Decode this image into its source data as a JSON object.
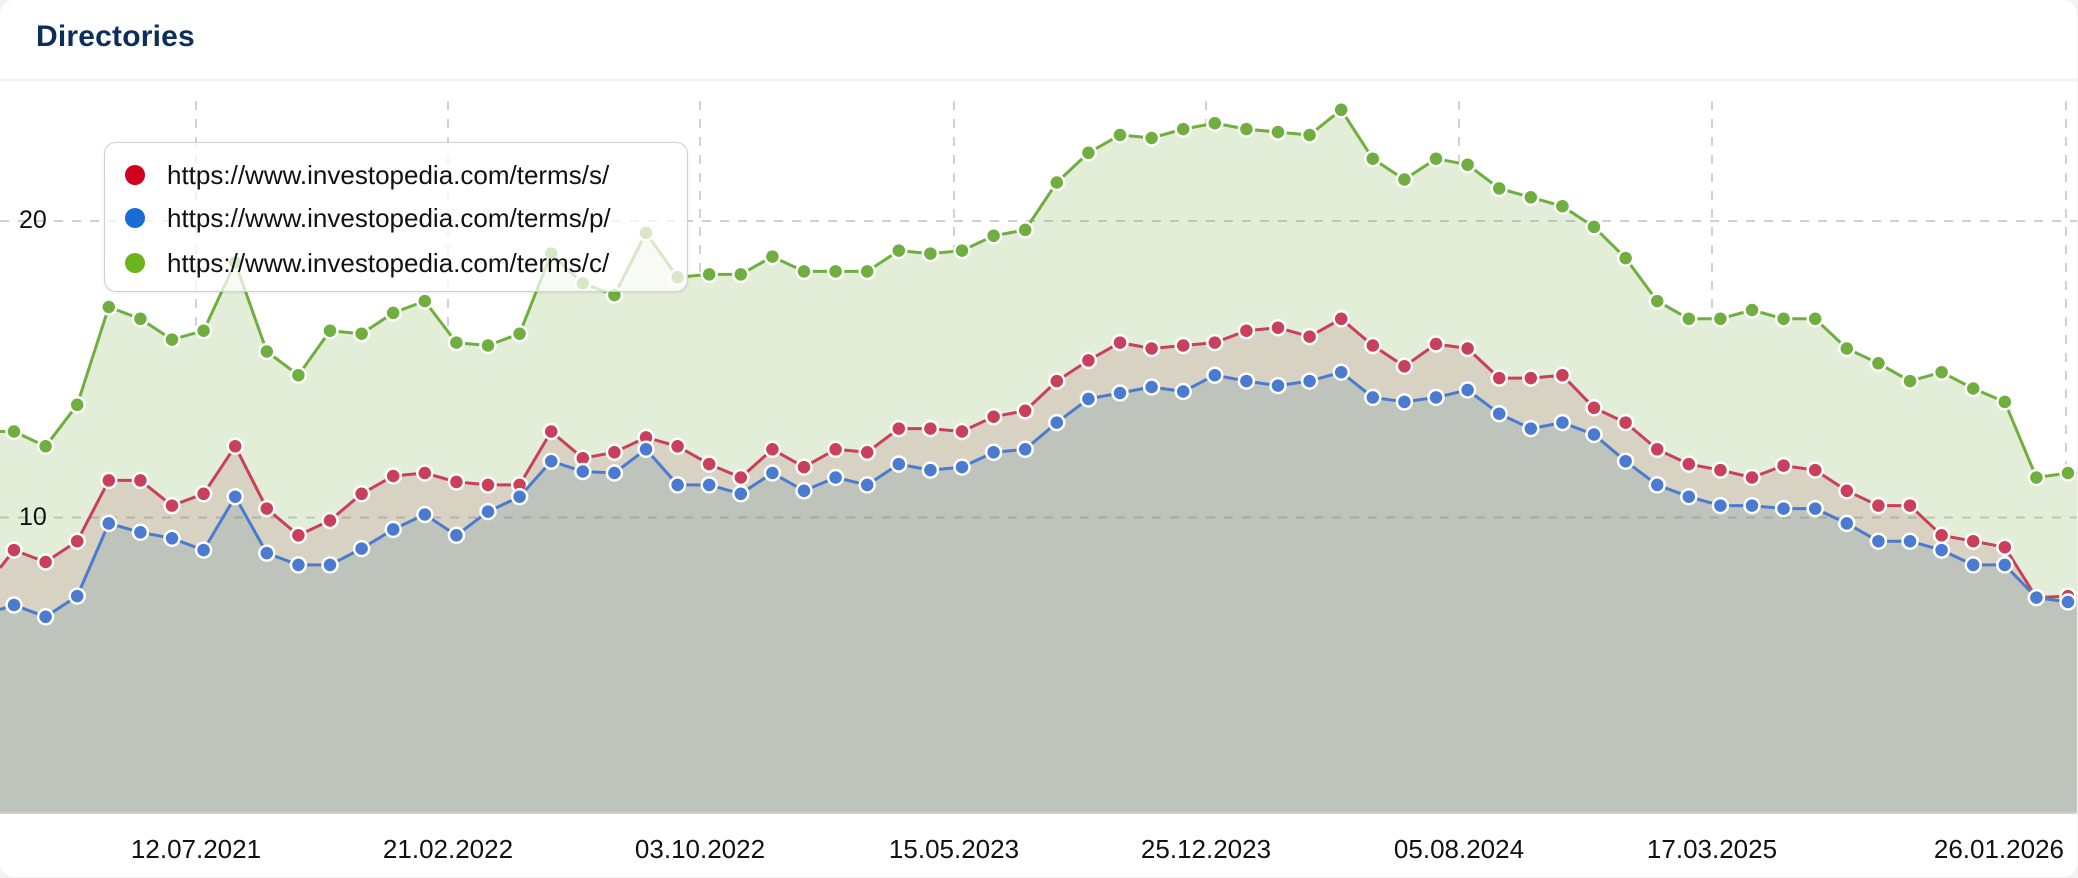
{
  "card": {
    "title": "Directories"
  },
  "legend": {
    "items": [
      {
        "label": "https://www.investopedia.com/terms/s/",
        "color": "#d0021b",
        "series": "s"
      },
      {
        "label": "https://www.investopedia.com/terms/p/",
        "color": "#1a6bd6",
        "series": "p"
      },
      {
        "label": "https://www.investopedia.com/terms/c/",
        "color": "#6db31a",
        "series": "c"
      }
    ]
  },
  "axes": {
    "y_ticks": [
      {
        "value": 10,
        "label": "10"
      },
      {
        "value": 20,
        "label": "20"
      }
    ],
    "x_ticks": [
      {
        "label": "12.07.2021"
      },
      {
        "label": "21.02.2022"
      },
      {
        "label": "03.10.2022"
      },
      {
        "label": "15.05.2023"
      },
      {
        "label": "25.12.2023"
      },
      {
        "label": "05.08.2024"
      },
      {
        "label": "17.03.2025"
      },
      {
        "label": "26.01.2026"
      }
    ]
  },
  "colors": {
    "c_line": "#6fae3f",
    "c_fill": "#e3eed9",
    "s_line": "#c9405a",
    "s_fill": "#d8d2c2",
    "p_line": "#4a7bd0",
    "p_fill": "#bec3bb",
    "grid": "#d2d2d2"
  },
  "chart_data": {
    "type": "area",
    "title": "Directories",
    "xlabel": "",
    "ylabel": "",
    "ylim": [
      0,
      25
    ],
    "grid": true,
    "legend_position": "top-left (overlay)",
    "x_tick_labels": [
      "12.07.2021",
      "21.02.2022",
      "03.10.2022",
      "15.05.2023",
      "25.12.2023",
      "05.08.2024",
      "17.03.2025",
      "26.01.2026"
    ],
    "y_tick_labels": [
      "10",
      "20"
    ],
    "x_note": "Sampled every 4 weeks (marker positions), first sample at chart left edge",
    "series": [
      {
        "name": "https://www.investopedia.com/terms/c/",
        "values": [
          12.9,
          12.9,
          12.4,
          13.8,
          17.1,
          16.7,
          16.0,
          16.3,
          18.6,
          15.6,
          14.8,
          16.3,
          16.2,
          16.9,
          17.3,
          15.9,
          15.8,
          16.2,
          18.9,
          17.9,
          17.5,
          19.6,
          18.1,
          18.2,
          18.2,
          18.8,
          18.3,
          18.3,
          18.3,
          19.0,
          18.9,
          19.0,
          19.5,
          19.7,
          21.3,
          22.3,
          22.9,
          22.8,
          23.1,
          23.3,
          23.1,
          23.0,
          22.9,
          23.75,
          22.1,
          21.4,
          22.1,
          21.9,
          21.1,
          20.8,
          20.5,
          19.8,
          18.75,
          17.3,
          16.7,
          16.7,
          17.0,
          16.7,
          16.7,
          15.7,
          15.2,
          14.6,
          14.9,
          14.35,
          13.9,
          11.35,
          11.5
        ]
      },
      {
        "name": "https://www.investopedia.com/terms/s/",
        "values": [
          8.3,
          8.9,
          8.5,
          9.2,
          11.25,
          11.25,
          10.4,
          10.8,
          12.4,
          10.3,
          9.4,
          9.9,
          10.8,
          11.4,
          11.5,
          11.2,
          11.1,
          11.1,
          12.9,
          12.0,
          12.2,
          12.7,
          12.4,
          11.8,
          11.35,
          12.3,
          11.7,
          12.3,
          12.2,
          13.0,
          13.0,
          12.9,
          13.4,
          13.6,
          14.6,
          15.3,
          15.9,
          15.7,
          15.8,
          15.9,
          16.3,
          16.4,
          16.1,
          16.7,
          15.8,
          15.1,
          15.85,
          15.7,
          14.7,
          14.7,
          14.8,
          13.7,
          13.2,
          12.3,
          11.8,
          11.6,
          11.35,
          11.75,
          11.6,
          10.9,
          10.4,
          10.4,
          9.4,
          9.2,
          9.0,
          7.3,
          7.35
        ]
      },
      {
        "name": "https://www.investopedia.com/terms/p/",
        "values": [
          6.9,
          7.05,
          6.65,
          7.35,
          9.8,
          9.5,
          9.3,
          8.9,
          10.7,
          8.8,
          8.4,
          8.4,
          8.95,
          9.6,
          10.1,
          9.4,
          10.2,
          10.7,
          11.9,
          11.55,
          11.5,
          12.3,
          11.1,
          11.1,
          10.8,
          11.5,
          10.9,
          11.35,
          11.1,
          11.8,
          11.6,
          11.7,
          12.2,
          12.3,
          13.2,
          14.0,
          14.2,
          14.4,
          14.25,
          14.8,
          14.6,
          14.45,
          14.6,
          14.9,
          14.05,
          13.9,
          14.05,
          14.3,
          13.5,
          13.0,
          13.2,
          12.8,
          11.9,
          11.1,
          10.7,
          10.4,
          10.4,
          10.3,
          10.3,
          9.8,
          9.2,
          9.2,
          8.9,
          8.4,
          8.4,
          7.3,
          7.15
        ]
      }
    ]
  }
}
